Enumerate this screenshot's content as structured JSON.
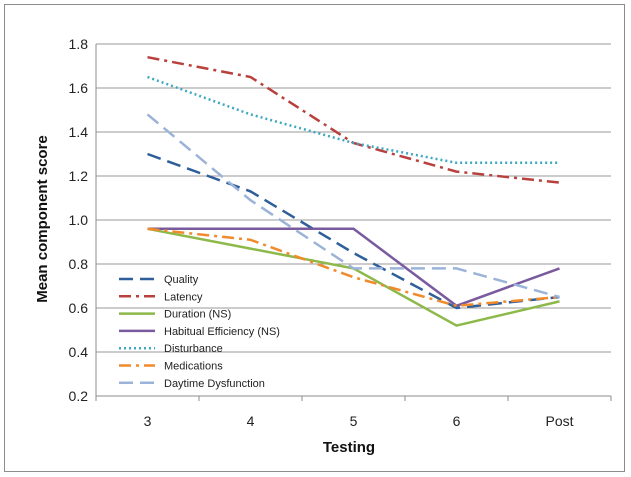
{
  "chart_data": {
    "type": "line",
    "title": "",
    "xlabel": "Testing",
    "ylabel": "Mean component score",
    "categories": [
      "3",
      "4",
      "5",
      "6",
      "Post"
    ],
    "ylim": [
      0.2,
      1.8
    ],
    "yticks": [
      "0.2",
      "0.4",
      "0.6",
      "0.8",
      "1.0",
      "1.2",
      "1.4",
      "1.6",
      "1.8"
    ],
    "grid": true,
    "legend_position": "bottom-left",
    "series": [
      {
        "name": "Quality",
        "values": [
          1.3,
          1.13,
          0.85,
          0.6,
          0.65
        ],
        "color": "#2e5f9a",
        "dash": "long-dash"
      },
      {
        "name": "Latency",
        "values": [
          1.74,
          1.65,
          1.35,
          1.22,
          1.17
        ],
        "color": "#b9413d",
        "dash": "dash-dot"
      },
      {
        "name": "Duration (NS)",
        "values": [
          0.96,
          0.87,
          0.78,
          0.52,
          0.63
        ],
        "color": "#8db94a",
        "dash": "solid"
      },
      {
        "name": "Habitual Efficiency (NS)",
        "values": [
          0.96,
          0.96,
          0.96,
          0.61,
          0.78
        ],
        "color": "#7a5a9e",
        "dash": "solid"
      },
      {
        "name": "Disturbance",
        "values": [
          1.65,
          1.48,
          1.35,
          1.26,
          1.26
        ],
        "color": "#3ea8c2",
        "dash": "dotted"
      },
      {
        "name": "Medications",
        "values": [
          0.96,
          0.91,
          0.74,
          0.61,
          0.65
        ],
        "color": "#f08a2c",
        "dash": "dash-dot"
      },
      {
        "name": "Daytime Dysfunction",
        "values": [
          1.48,
          1.09,
          0.78,
          0.78,
          0.65
        ],
        "color": "#9bb3d9",
        "dash": "long-dash"
      }
    ]
  }
}
